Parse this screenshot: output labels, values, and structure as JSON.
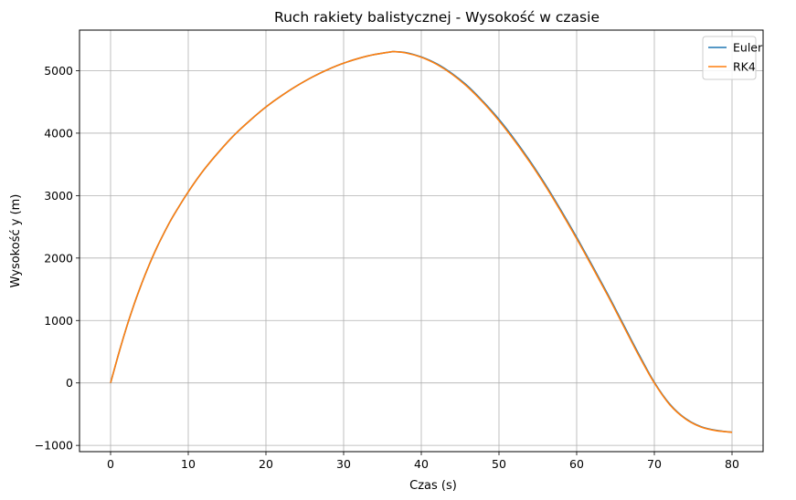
{
  "chart_data": {
    "type": "line",
    "title": "Ruch rakiety balistycznej - Wysokość w czasie",
    "xlabel": "Czas (s)",
    "ylabel": "Wysokość y (m)",
    "xlim": [
      -4,
      84
    ],
    "ylim": [
      -1100,
      5650
    ],
    "xticks": [
      0,
      10,
      20,
      30,
      40,
      50,
      60,
      70,
      80
    ],
    "yticks": [
      -1000,
      0,
      1000,
      2000,
      3000,
      4000,
      5000
    ],
    "ytick_labels": [
      "−1000",
      "0",
      "1000",
      "2000",
      "3000",
      "4000",
      "5000"
    ],
    "grid": true,
    "legend_position": "top-right",
    "x": [
      0,
      1,
      2,
      3,
      4,
      5,
      6,
      7,
      8,
      10,
      12,
      14,
      16,
      18,
      20,
      22,
      24,
      26,
      28,
      30,
      32,
      34,
      36,
      36.5,
      38,
      40,
      42,
      44,
      46,
      48,
      50,
      52,
      54,
      56,
      58,
      60,
      62,
      64,
      66,
      68,
      70,
      72,
      74,
      76,
      78,
      80
    ],
    "series": [
      {
        "name": "Euler",
        "color": "#1f77b4",
        "values": [
          0,
          450,
          870,
          1250,
          1590,
          1900,
          2180,
          2430,
          2660,
          3060,
          3410,
          3710,
          3980,
          4210,
          4420,
          4600,
          4760,
          4900,
          5020,
          5120,
          5200,
          5260,
          5300,
          5305,
          5290,
          5220,
          5110,
          4950,
          4750,
          4500,
          4220,
          3900,
          3550,
          3170,
          2760,
          2330,
          1880,
          1420,
          940,
          460,
          10,
          -340,
          -570,
          -700,
          -760,
          -790
        ]
      },
      {
        "name": "RK4",
        "color": "#ff7f0e",
        "values": [
          0,
          450,
          870,
          1250,
          1590,
          1900,
          2180,
          2430,
          2660,
          3060,
          3410,
          3710,
          3980,
          4210,
          4420,
          4600,
          4760,
          4900,
          5020,
          5120,
          5200,
          5260,
          5300,
          5305,
          5285,
          5215,
          5100,
          4940,
          4735,
          4485,
          4200,
          3880,
          3530,
          3150,
          2740,
          2310,
          1860,
          1400,
          920,
          440,
          0,
          -350,
          -575,
          -705,
          -765,
          -790
        ]
      }
    ]
  }
}
